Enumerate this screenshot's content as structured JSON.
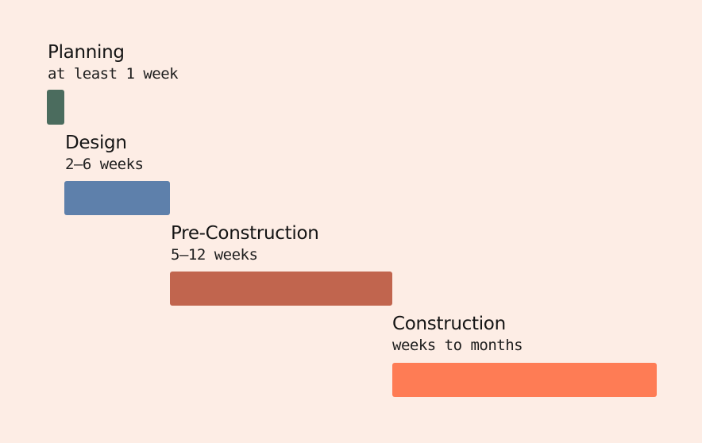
{
  "phases": [
    {
      "name": "Planning",
      "duration": "at least 1 week"
    },
    {
      "name": "Design",
      "duration": "2–6 weeks"
    },
    {
      "name": "Pre-Construction",
      "duration": "5–12 weeks"
    },
    {
      "name": "Construction",
      "duration": "weeks to months"
    }
  ]
}
